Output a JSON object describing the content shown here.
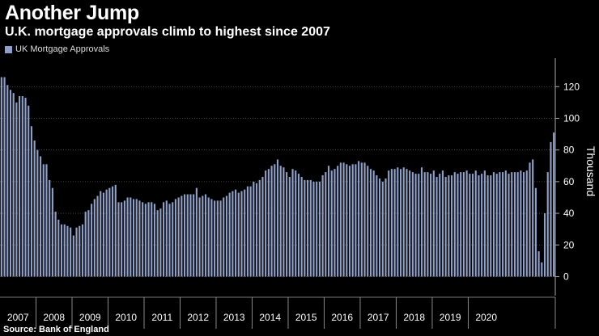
{
  "title": "Another Jump",
  "subtitle": "U.K. mortgage approvals climb to highest since 2007",
  "legend": "UK Mortgage Approvals",
  "source": "Source: Bank of England",
  "colors": {
    "bar": "#8ea0c8",
    "grid": "#555555",
    "background": "#000000"
  },
  "chart_data": {
    "type": "bar",
    "series": [
      {
        "name": "UK Mortgage Approvals",
        "start": "2007-01",
        "end": "2020-08"
      }
    ],
    "categories_years": [
      "2007",
      "2008",
      "2009",
      "2010",
      "2011",
      "2012",
      "2013",
      "2014",
      "2015",
      "2016",
      "2017",
      "2018",
      "2019",
      "2020"
    ],
    "values": [
      126,
      126,
      121,
      118,
      116,
      110,
      114,
      114,
      113,
      108,
      95,
      86,
      80,
      76,
      71,
      71,
      61,
      56,
      41,
      36,
      33,
      33,
      32,
      31,
      26,
      31,
      32,
      33,
      41,
      42,
      46,
      49,
      51,
      54,
      53,
      55,
      56,
      57,
      58,
      47,
      47,
      48,
      50,
      50,
      49,
      49,
      48,
      47,
      46,
      47,
      47,
      46,
      42,
      43,
      47,
      48,
      46,
      47,
      49,
      50,
      51,
      52,
      52,
      52,
      52,
      56,
      50,
      51,
      52,
      50,
      49,
      48,
      48,
      48,
      50,
      51,
      53,
      54,
      55,
      53,
      54,
      55,
      57,
      57,
      60,
      59,
      61,
      63,
      67,
      68,
      70,
      71,
      74,
      70,
      69,
      66,
      63,
      68,
      67,
      65,
      63,
      61,
      61,
      61,
      60,
      60,
      60,
      64,
      66,
      70,
      67,
      68,
      70,
      72,
      72,
      71,
      70,
      71,
      71,
      73,
      72,
      72,
      70,
      68,
      67,
      64,
      62,
      60,
      62,
      67,
      68,
      68,
      69,
      68,
      69,
      68,
      67,
      66,
      65,
      65,
      69,
      66,
      66,
      65,
      67,
      63,
      65,
      67,
      63,
      64,
      64,
      66,
      65,
      66,
      66,
      67,
      65,
      65,
      67,
      64,
      65,
      67,
      64,
      64,
      66,
      65,
      66,
      66,
      67,
      65,
      66,
      66,
      66,
      67,
      66,
      67,
      72,
      74,
      56,
      16,
      9,
      40,
      66,
      85,
      91
    ],
    "ylim": [
      -12,
      138
    ],
    "yticks": [
      0,
      20,
      40,
      60,
      80,
      100,
      120
    ],
    "ylabel": "Thousand",
    "xlabel": ""
  }
}
